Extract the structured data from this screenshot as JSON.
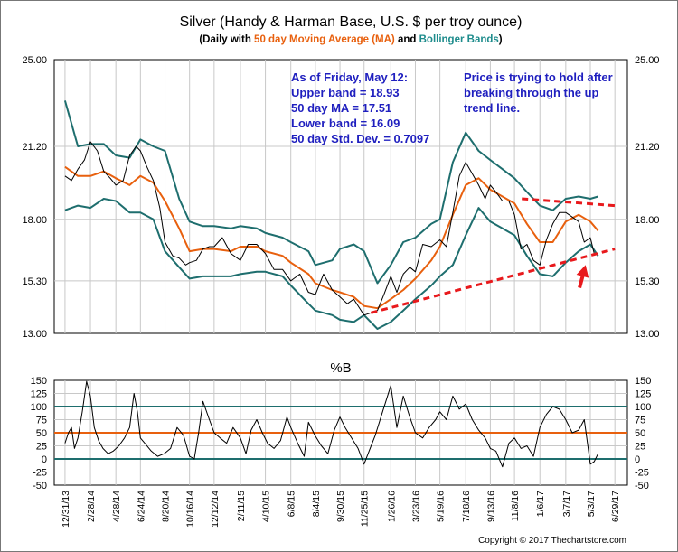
{
  "chart_data": [
    {
      "type": "line",
      "title": "Silver (Handy & Harman Base, U.S. $ per troy ounce)",
      "subtitle": {
        "prefix": "(Daily with ",
        "ma_label": "50 day Moving Average (MA)",
        "middle": " and ",
        "bb_label": "Bollinger Bands",
        "suffix": ")"
      },
      "ylim": [
        13.0,
        25.0
      ],
      "yticks": [
        "25.00",
        "21.20",
        "18.00",
        "15.30",
        "13.00"
      ],
      "ytick_values": [
        25.0,
        21.2,
        18.0,
        15.3,
        13.0
      ],
      "x_tick_labels": [
        "12/31/13",
        "2/28/14",
        "4/28/14",
        "6/24/14",
        "8/20/14",
        "10/16/14",
        "12/12/14",
        "2/11/15",
        "4/10/15",
        "6/8/15",
        "8/4/15",
        "9/30/15",
        "11/25/15",
        "1/26/16",
        "3/23/16",
        "5/19/16",
        "7/18/16",
        "9/13/16",
        "11/8/16",
        "1/6/17",
        "3/7/17",
        "5/3/17",
        "6/29/17"
      ],
      "x_tick_days": [
        0,
        59,
        118,
        175,
        232,
        289,
        346,
        407,
        465,
        524,
        581,
        638,
        694,
        756,
        813,
        870,
        930,
        987,
        1043,
        1102,
        1162,
        1219,
        1276
      ],
      "x_range_days": [
        -25,
        1305
      ],
      "series": [
        {
          "name": "Silver price",
          "color": "#000000",
          "x": [
            0,
            15,
            30,
            45,
            59,
            75,
            90,
            105,
            118,
            135,
            150,
            165,
            175,
            190,
            205,
            220,
            232,
            250,
            265,
            280,
            289,
            305,
            320,
            335,
            346,
            365,
            385,
            407,
            425,
            445,
            465,
            485,
            505,
            524,
            545,
            565,
            581,
            600,
            620,
            638,
            655,
            670,
            694,
            710,
            725,
            740,
            756,
            770,
            785,
            800,
            813,
            830,
            850,
            870,
            885,
            900,
            915,
            930,
            945,
            960,
            975,
            987,
            1000,
            1015,
            1030,
            1043,
            1058,
            1072,
            1087,
            1102,
            1117,
            1132,
            1147,
            1162,
            1177,
            1192,
            1205,
            1219,
            1228,
            1237
          ],
          "values": [
            19.9,
            19.7,
            20.2,
            20.6,
            21.4,
            21.0,
            20.1,
            19.8,
            19.5,
            19.7,
            20.8,
            21.2,
            21.0,
            20.3,
            19.7,
            18.5,
            17.0,
            16.4,
            16.3,
            16.0,
            16.1,
            16.2,
            16.7,
            16.8,
            16.8,
            17.2,
            16.5,
            16.2,
            16.9,
            16.9,
            16.5,
            15.8,
            15.8,
            15.3,
            15.6,
            14.8,
            14.7,
            15.6,
            14.9,
            14.6,
            14.3,
            14.5,
            13.8,
            13.9,
            14.0,
            14.7,
            15.5,
            14.8,
            15.6,
            15.9,
            15.7,
            16.9,
            16.8,
            17.1,
            16.8,
            18.3,
            19.9,
            20.5,
            20.0,
            19.5,
            18.9,
            19.5,
            19.2,
            18.8,
            18.8,
            18.2,
            16.7,
            16.9,
            16.2,
            16.0,
            17.1,
            17.8,
            18.3,
            18.3,
            18.1,
            17.9,
            17.0,
            17.2,
            16.5,
            16.5
          ]
        },
        {
          "name": "50 day MA",
          "color": "#e8600e",
          "x": [
            0,
            30,
            59,
            90,
            118,
            150,
            175,
            205,
            232,
            265,
            289,
            320,
            346,
            385,
            407,
            445,
            465,
            505,
            524,
            565,
            581,
            620,
            638,
            670,
            694,
            725,
            756,
            785,
            813,
            850,
            870,
            900,
            930,
            960,
            987,
            1015,
            1043,
            1072,
            1102,
            1132,
            1162,
            1192,
            1219,
            1237
          ],
          "values": [
            20.3,
            19.9,
            19.9,
            20.1,
            19.8,
            19.5,
            19.9,
            19.6,
            18.8,
            17.6,
            16.6,
            16.7,
            16.7,
            16.6,
            16.8,
            16.8,
            16.6,
            16.4,
            16.1,
            15.6,
            15.2,
            14.9,
            14.8,
            14.6,
            14.2,
            14.1,
            14.5,
            14.9,
            15.4,
            16.2,
            16.8,
            18.2,
            19.5,
            19.8,
            19.3,
            19.0,
            18.7,
            17.8,
            17.0,
            17.0,
            17.9,
            18.2,
            17.9,
            17.5
          ]
        },
        {
          "name": "Upper Bollinger Band",
          "color": "#1e6e6e",
          "x": [
            0,
            30,
            59,
            90,
            118,
            150,
            175,
            205,
            232,
            265,
            289,
            320,
            346,
            385,
            407,
            445,
            465,
            505,
            524,
            565,
            581,
            620,
            638,
            670,
            694,
            725,
            756,
            785,
            813,
            850,
            870,
            900,
            930,
            960,
            987,
            1015,
            1043,
            1072,
            1102,
            1132,
            1162,
            1192,
            1219,
            1237
          ],
          "values": [
            23.2,
            21.2,
            21.3,
            21.3,
            20.8,
            20.7,
            21.5,
            21.2,
            21.0,
            18.9,
            17.9,
            17.7,
            17.7,
            17.6,
            17.7,
            17.6,
            17.4,
            17.2,
            17.0,
            16.6,
            16.0,
            16.2,
            16.7,
            16.9,
            16.6,
            15.2,
            16.0,
            17.0,
            17.2,
            17.8,
            18.0,
            20.5,
            21.8,
            21.0,
            20.6,
            20.2,
            19.8,
            19.2,
            18.6,
            18.4,
            18.9,
            19.0,
            18.9,
            19.0
          ]
        },
        {
          "name": "Lower Bollinger Band",
          "color": "#1e6e6e",
          "x": [
            0,
            30,
            59,
            90,
            118,
            150,
            175,
            205,
            232,
            265,
            289,
            320,
            346,
            385,
            407,
            445,
            465,
            505,
            524,
            565,
            581,
            620,
            638,
            670,
            694,
            725,
            756,
            785,
            813,
            850,
            870,
            900,
            930,
            960,
            987,
            1015,
            1043,
            1072,
            1102,
            1132,
            1162,
            1192,
            1219,
            1237
          ],
          "values": [
            18.4,
            18.6,
            18.5,
            18.9,
            18.8,
            18.3,
            18.3,
            18.0,
            16.6,
            15.9,
            15.4,
            15.5,
            15.5,
            15.5,
            15.6,
            15.7,
            15.7,
            15.5,
            15.1,
            14.3,
            14.0,
            13.8,
            13.6,
            13.5,
            13.8,
            13.2,
            13.5,
            14.0,
            14.5,
            15.1,
            15.5,
            16.0,
            17.3,
            18.5,
            17.9,
            17.6,
            17.3,
            16.4,
            15.6,
            15.5,
            16.1,
            16.6,
            16.9,
            16.4
          ]
        }
      ],
      "trend_lines": [
        {
          "name": "up trend line",
          "color": "#e8191c",
          "x": [
            710,
            1276
          ],
          "values": [
            13.9,
            16.7
          ]
        },
        {
          "name": "upper trend line",
          "color": "#e8191c",
          "x": [
            1060,
            1276
          ],
          "values": [
            18.9,
            18.6
          ]
        }
      ],
      "arrow": {
        "color": "#e8191c",
        "from": [
          1194,
          15.0
        ],
        "to": [
          1208,
          16.0
        ]
      },
      "annotations": {
        "stats": [
          "As of Friday, May 12:",
          "Upper band = 18.93",
          "50 day MA = 17.51",
          "Lower band = 16.09",
          "50 day Std. Dev. = 0.7097"
        ],
        "note": [
          "Price is trying to hold after",
          "breaking through the up",
          "trend line."
        ],
        "color": "#1f1fbf"
      },
      "grid": true
    },
    {
      "type": "line",
      "title": "%B",
      "ylim": [
        -50,
        150
      ],
      "yticks": [
        "150",
        "125",
        "100",
        "75",
        "50",
        "25",
        "0",
        "-25",
        "-50"
      ],
      "ytick_values": [
        150,
        125,
        100,
        75,
        50,
        25,
        0,
        -25,
        -50
      ],
      "reference_lines": [
        {
          "value": 100,
          "color": "#1e6e6e"
        },
        {
          "value": 50,
          "color": "#e8600e"
        },
        {
          "value": 0,
          "color": "#1e6e6e"
        }
      ],
      "series": [
        {
          "name": "%B",
          "color": "#000000",
          "x": [
            0,
            8,
            15,
            22,
            30,
            40,
            50,
            59,
            68,
            78,
            88,
            100,
            112,
            125,
            138,
            150,
            160,
            168,
            175,
            185,
            200,
            215,
            230,
            245,
            260,
            275,
            289,
            300,
            310,
            320,
            335,
            346,
            360,
            375,
            390,
            407,
            420,
            432,
            445,
            458,
            470,
            485,
            500,
            515,
            524,
            540,
            555,
            565,
            580,
            595,
            610,
            625,
            638,
            650,
            665,
            680,
            694,
            708,
            720,
            735,
            756,
            770,
            785,
            800,
            813,
            830,
            845,
            860,
            870,
            885,
            900,
            915,
            930,
            945,
            960,
            975,
            987,
            1000,
            1015,
            1030,
            1043,
            1058,
            1072,
            1087,
            1102,
            1117,
            1132,
            1147,
            1162,
            1177,
            1192,
            1205,
            1219,
            1228,
            1237
          ],
          "values": [
            30,
            50,
            60,
            20,
            40,
            90,
            148,
            120,
            60,
            35,
            20,
            10,
            15,
            25,
            40,
            60,
            125,
            90,
            40,
            30,
            15,
            5,
            10,
            20,
            60,
            45,
            5,
            0,
            50,
            110,
            75,
            50,
            40,
            30,
            60,
            40,
            10,
            55,
            75,
            50,
            30,
            20,
            35,
            80,
            60,
            30,
            5,
            70,
            45,
            25,
            10,
            55,
            80,
            60,
            40,
            20,
            -10,
            20,
            45,
            85,
            140,
            60,
            120,
            80,
            50,
            40,
            60,
            75,
            90,
            75,
            120,
            95,
            105,
            75,
            55,
            40,
            20,
            15,
            -15,
            30,
            40,
            20,
            25,
            5,
            60,
            85,
            100,
            95,
            75,
            50,
            55,
            75,
            -10,
            -5,
            10
          ]
        }
      ],
      "grid": true
    }
  ],
  "footer": {
    "copyright": "Copyright © 2017 Thechartstore.com"
  }
}
